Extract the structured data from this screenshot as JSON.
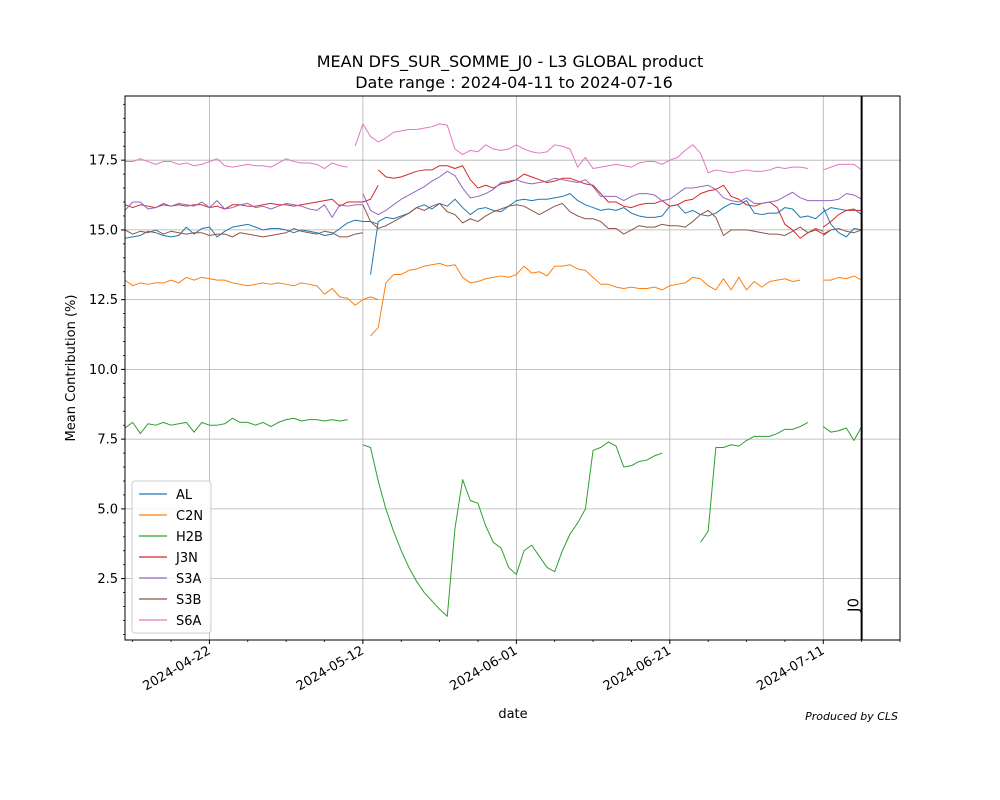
{
  "chart_data": {
    "type": "line",
    "title_line1": "MEAN DFS_SUR_SOMME_J0 - L3 GLOBAL product",
    "title_line2": "Date range : 2024-04-11 to 2024-07-16",
    "xlabel": "date",
    "ylabel": "Mean Contribution (%)",
    "footer": "Produced by CLS",
    "marker_label": "J0",
    "marker_date": "2024-07-16",
    "xlim": [
      "2024-04-11",
      "2024-07-21"
    ],
    "ylim": [
      0.3,
      19.8
    ],
    "x_ticks": [
      "2024-04-22",
      "2024-05-12",
      "2024-06-01",
      "2024-06-21",
      "2024-07-11"
    ],
    "y_ticks": [
      "2.5",
      "5.0",
      "7.5",
      "10.0",
      "12.5",
      "15.0",
      "17.5"
    ],
    "y_tick_values": [
      2.5,
      5.0,
      7.5,
      10.0,
      12.5,
      15.0,
      17.5
    ],
    "grid": true,
    "legend_position": "lower-left",
    "main_start_date": "2024-04-11",
    "main_end_date": "2024-07-09",
    "tail_start_date": "2024-07-11",
    "tail_end_date": "2024-07-16",
    "series": [
      {
        "name": "AL",
        "color": "#1f77b4",
        "main": [
          {
            "date": "2024-04-11",
            "values": [
              14.7,
              14.75,
              14.8,
              14.95,
              14.9,
              14.8,
              14.75,
              14.8,
              15.1,
              14.85,
              15.05,
              15.1,
              14.75,
              14.95,
              15.1,
              15.15,
              15.2,
              15.1,
              15.0,
              15.05,
              15.05,
              15.0,
              14.9,
              15.0,
              14.95,
              14.9,
              14.8,
              14.85,
              15.05,
              15.25,
              15.35,
              15.3,
              15.3,
              15.2
            ]
          },
          {
            "date": "2024-05-13",
            "values": [
              13.4,
              15.3,
              15.45,
              15.4,
              15.5,
              15.6,
              15.8,
              15.9,
              15.75,
              15.95,
              15.85,
              16.1,
              15.8,
              15.55,
              15.75,
              15.8,
              15.7,
              15.65,
              15.85,
              16.05,
              16.1,
              16.05,
              16.1,
              16.1,
              16.15,
              16.2,
              16.3,
              16.05,
              15.9,
              15.8,
              15.7,
              15.75,
              15.7,
              15.8,
              15.6,
              15.5,
              15.45,
              15.45,
              15.5,
              15.85,
              15.9,
              15.6,
              15.7,
              15.55,
              15.5,
              15.6,
              15.8,
              15.95,
              15.9,
              16.05,
              15.6,
              15.55,
              15.6,
              15.6,
              15.8,
              15.75,
              15.45,
              15.5,
              15.4,
              15.65,
              15.8,
              15.75,
              15.7,
              15.75,
              15.55
            ]
          }
        ],
        "tail": [
          15.8,
          15.2,
          14.9,
          14.75,
          15.05,
          15.0
        ]
      },
      {
        "name": "C2N",
        "color": "#ff7f0e",
        "main": [
          {
            "date": "2024-04-11",
            "values": [
              13.2,
              13.0,
              13.1,
              13.05,
              13.1,
              13.1,
              13.2,
              13.1,
              13.3,
              13.2,
              13.3,
              13.25,
              13.2,
              13.2,
              13.1,
              13.05,
              13.0,
              13.05,
              13.1,
              13.05,
              13.1,
              13.05,
              13.0,
              13.1,
              13.05,
              13.0,
              12.7,
              12.9,
              12.6,
              12.55,
              12.3,
              12.5,
              12.6,
              12.5
            ]
          },
          {
            "date": "2024-05-13",
            "values": [
              11.2,
              11.5,
              13.1,
              13.4,
              13.4,
              13.55,
              13.6,
              13.7,
              13.75,
              13.8,
              13.7,
              13.75,
              13.3,
              13.1,
              13.15,
              13.25,
              13.3,
              13.35,
              13.3,
              13.4,
              13.7,
              13.45,
              13.5,
              13.35,
              13.7,
              13.7,
              13.75,
              13.6,
              13.55,
              13.3,
              13.05,
              13.05,
              12.95,
              12.9,
              12.95,
              12.9,
              12.9,
              12.95,
              12.85,
              13.0,
              13.05,
              13.1,
              13.3,
              13.25,
              13.0,
              12.85,
              13.25,
              12.85,
              13.3,
              12.85,
              13.15,
              12.95,
              13.15,
              13.2,
              13.25,
              13.15,
              13.2
            ]
          }
        ],
        "tail": [
          13.2,
          13.2,
          13.3,
          13.25,
          13.35,
          13.2
        ]
      },
      {
        "name": "H2B",
        "color": "#2ca02c",
        "main": [
          {
            "date": "2024-04-11",
            "values": [
              7.9,
              8.1,
              7.7,
              8.05,
              8.0,
              8.1,
              8.0,
              8.05,
              8.1,
              7.75,
              8.1,
              8.0,
              8.0,
              8.05,
              8.25,
              8.1,
              8.1,
              8.0,
              8.1,
              7.95,
              8.1,
              8.2,
              8.25,
              8.15,
              8.2,
              8.2,
              8.15,
              8.2,
              8.15,
              8.2
            ]
          },
          {
            "date": "2024-05-12",
            "values": [
              7.3,
              7.2,
              6.0,
              5.0,
              4.2,
              3.5,
              2.9,
              2.4,
              2.0,
              1.7,
              1.4,
              1.15,
              4.3,
              6.05,
              5.3,
              5.2,
              4.4,
              3.8,
              3.6,
              2.9,
              2.65,
              3.5,
              3.7,
              3.3,
              2.9,
              2.75,
              3.5,
              4.1,
              4.5,
              5.0,
              7.1,
              7.2,
              7.4,
              7.25,
              6.5,
              6.55,
              6.7,
              6.75,
              6.9,
              7.0
            ]
          },
          {
            "date": "2024-06-25",
            "values": [
              3.8,
              4.2,
              7.2,
              7.2,
              7.3,
              7.25,
              7.45,
              7.6,
              7.6,
              7.6,
              7.7,
              7.85,
              7.85,
              7.95,
              8.1
            ]
          }
        ],
        "tail": [
          7.95,
          7.75,
          7.8,
          7.9,
          7.45,
          7.95
        ]
      },
      {
        "name": "J3N",
        "color": "#d62728",
        "main": [
          {
            "date": "2024-04-11",
            "values": [
              15.9,
              15.8,
              15.9,
              15.85,
              15.8,
              15.9,
              15.85,
              15.9,
              15.85,
              15.9,
              15.9,
              15.8,
              15.85,
              15.75,
              15.9,
              15.9,
              15.85,
              15.85,
              15.9,
              15.95,
              15.9,
              15.9,
              15.85,
              15.9,
              15.95,
              16.0,
              16.05,
              16.1,
              15.85,
              16.0,
              16.0,
              16.0,
              16.1,
              16.6
            ]
          },
          {
            "date": "2024-05-14",
            "values": [
              17.15,
              16.9,
              16.85,
              16.9,
              17.0,
              17.1,
              17.15,
              17.15,
              17.3,
              17.3,
              17.2,
              17.3,
              16.8,
              16.5,
              16.6,
              16.5,
              16.65,
              16.7,
              16.8,
              17.0,
              16.9,
              16.8,
              16.7,
              16.75,
              16.85,
              16.85,
              16.75,
              16.65,
              16.6,
              16.3,
              16.0,
              16.0,
              15.85,
              15.8,
              15.9,
              15.95,
              15.95,
              16.05,
              15.85,
              15.9,
              16.05,
              16.1,
              16.3,
              16.4,
              16.45,
              16.6,
              16.2,
              16.1,
              15.9,
              15.85,
              15.95,
              16.0,
              15.8,
              15.2,
              15.0,
              14.7,
              14.9,
              15.0,
              14.85,
              15.0
            ]
          }
        ],
        "tail": [
          15.1,
          15.3,
          15.55,
          15.7,
          15.7,
          15.7
        ]
      },
      {
        "name": "S3A",
        "color": "#9467bd",
        "main": [
          {
            "date": "2024-04-11",
            "values": [
              15.7,
              16.0,
              16.0,
              15.75,
              15.8,
              15.95,
              15.85,
              15.95,
              15.9,
              15.85,
              16.0,
              15.8,
              16.05,
              15.75,
              15.8,
              15.9,
              15.95,
              15.8,
              15.85,
              15.75,
              15.85,
              15.95,
              15.9,
              15.85,
              15.75,
              15.7,
              15.9,
              15.45,
              15.9,
              15.85,
              15.9,
              15.9
            ]
          },
          {
            "date": "2024-05-12",
            "values": [
              16.3,
              15.7,
              15.55,
              15.7,
              15.9,
              16.1,
              16.25,
              16.4,
              16.55,
              16.75,
              16.9,
              17.1,
              16.95,
              16.5,
              16.15,
              16.2,
              16.3,
              16.45,
              16.7,
              16.75,
              16.8,
              16.7,
              16.65,
              16.7,
              16.75,
              16.85,
              16.8,
              16.75,
              16.7,
              16.8,
              16.55,
              16.2,
              16.2,
              16.2,
              16.05,
              16.2,
              16.3,
              16.3,
              16.25,
              16.05,
              16.1,
              16.3,
              16.5,
              16.5,
              16.55,
              16.6,
              16.45,
              16.15,
              16.05,
              16.0,
              16.15,
              15.95,
              15.95,
              16.0,
              16.05,
              16.2,
              16.35,
              16.15,
              16.05,
              16.05,
              16.05
            ]
          }
        ],
        "tail": [
          16.05,
          16.05,
          16.1,
          16.3,
          16.25,
          16.1
        ]
      },
      {
        "name": "S3B",
        "color": "#8c564b",
        "main": [
          {
            "date": "2024-04-11",
            "values": [
              15.0,
              14.85,
              14.95,
              14.9,
              15.0,
              14.85,
              14.95,
              14.9,
              14.85,
              14.9,
              14.9,
              14.8,
              14.85,
              14.85,
              14.75,
              14.9,
              14.85,
              14.8,
              14.75,
              14.8,
              14.85,
              14.9,
              15.05,
              14.95,
              14.9,
              14.85,
              14.95,
              14.9,
              14.75,
              14.75,
              14.85,
              14.9
            ]
          },
          {
            "date": "2024-05-12",
            "values": [
              15.9,
              15.3,
              15.05,
              15.15,
              15.3,
              15.45,
              15.6,
              15.8,
              15.7,
              15.85,
              15.95,
              15.65,
              15.55,
              15.25,
              15.4,
              15.3,
              15.5,
              15.65,
              15.75,
              15.85,
              15.9,
              15.85,
              15.7,
              15.55,
              15.7,
              15.85,
              15.95,
              15.65,
              15.5,
              15.4,
              15.4,
              15.3,
              15.05,
              15.05,
              14.85,
              15.0,
              15.15,
              15.1,
              15.1,
              15.2,
              15.15,
              15.15,
              15.1,
              15.3,
              15.55,
              15.7,
              15.45,
              14.8,
              15.0,
              15.0,
              15.0,
              14.95,
              14.9,
              14.85,
              14.85,
              14.8,
              14.95,
              15.1,
              14.9,
              15.05,
              14.95
            ]
          }
        ],
        "tail": [
          14.8,
          15.0,
          15.05,
          14.95,
          14.9,
          15.0
        ]
      },
      {
        "name": "S6A",
        "color": "#e377c2",
        "main": [
          {
            "date": "2024-04-11",
            "values": [
              17.45,
              17.45,
              17.55,
              17.45,
              17.35,
              17.45,
              17.45,
              17.35,
              17.4,
              17.3,
              17.35,
              17.45,
              17.55,
              17.3,
              17.25,
              17.3,
              17.35,
              17.3,
              17.3,
              17.25,
              17.4,
              17.55,
              17.45,
              17.4,
              17.4,
              17.35,
              17.2,
              17.4,
              17.3,
              17.25
            ]
          },
          {
            "date": "2024-05-11",
            "values": [
              18.0,
              18.8,
              18.35,
              18.15,
              18.3,
              18.5,
              18.55,
              18.6,
              18.6,
              18.65,
              18.7,
              18.8,
              18.75,
              17.9,
              17.7,
              17.85,
              17.8,
              18.05,
              17.9,
              17.85,
              17.9,
              18.05,
              17.9,
              17.8,
              17.75,
              17.8,
              18.05,
              18.0,
              17.9,
              17.25,
              17.6,
              17.2,
              17.25,
              17.3,
              17.35,
              17.3,
              17.25,
              17.4,
              17.45,
              17.45,
              17.35,
              17.5,
              17.6,
              17.85,
              18.05,
              17.75,
              17.05,
              17.15,
              17.1,
              17.05,
              17.1,
              17.15,
              17.1,
              17.1,
              17.15,
              17.25,
              17.2,
              17.25,
              17.25,
              17.2
            ]
          }
        ],
        "tail": [
          17.15,
          17.25,
          17.35,
          17.35,
          17.35,
          17.15
        ]
      }
    ]
  }
}
